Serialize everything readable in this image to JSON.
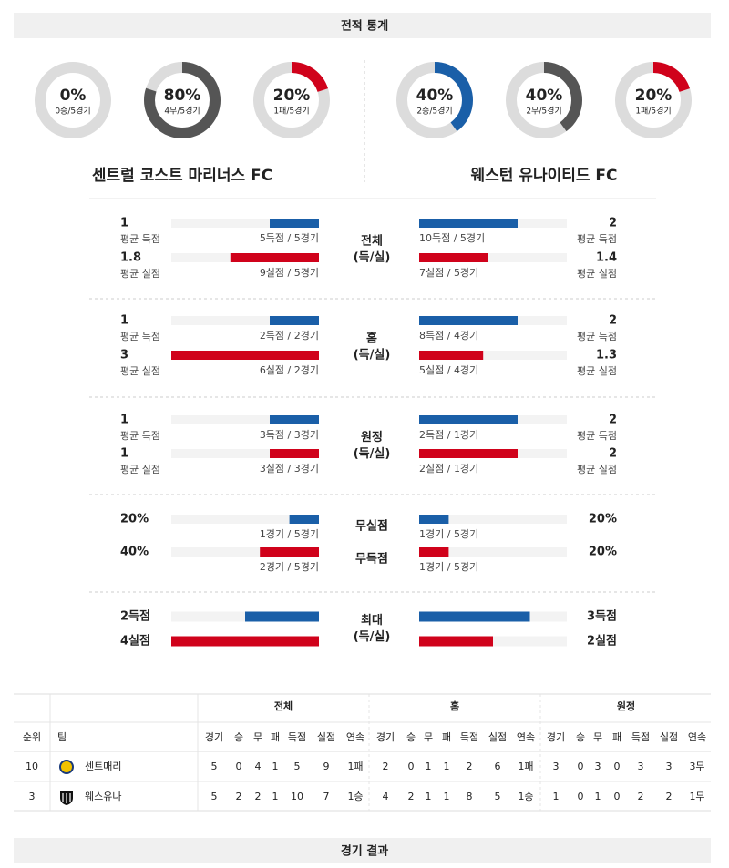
{
  "header": {
    "title": "전적 통계"
  },
  "teams": [
    {
      "name": "센트럴 코스트 마리너스 FC",
      "donuts": [
        {
          "value": 0,
          "label": "0%",
          "caption": "0승/5경기",
          "color": "#1a5fa8"
        },
        {
          "value": 80,
          "label": "80%",
          "caption": "4무/5경기",
          "color": "#555555"
        },
        {
          "value": 20,
          "label": "20%",
          "caption": "1패/5경기",
          "color": "#d0021b"
        }
      ]
    },
    {
      "name": "웨스턴 유나이티드 FC",
      "donuts": [
        {
          "value": 40,
          "label": "40%",
          "caption": "2승/5경기",
          "color": "#1a5fa8"
        },
        {
          "value": 40,
          "label": "40%",
          "caption": "2무/5경기",
          "color": "#555555"
        },
        {
          "value": 20,
          "label": "20%",
          "caption": "1패/5경기",
          "color": "#d0021b"
        }
      ]
    }
  ],
  "stats": {
    "sections": [
      {
        "label": [
          "전체",
          "(득/실)"
        ],
        "xlim": [
          0,
          3
        ],
        "rows": [
          {
            "color": "#1a5fa8",
            "left": {
              "value": 1,
              "caption": "평균 득점",
              "note": "5득점 / 5경기"
            },
            "right": {
              "value": 2,
              "caption": "평균 득점",
              "note": "10득점 / 5경기"
            }
          },
          {
            "color": "#d0021b",
            "left": {
              "value": 1.8,
              "caption": "평균 실점",
              "note": "9실점 / 5경기"
            },
            "right": {
              "value": 1.4,
              "caption": "평균 실점",
              "note": "7실점 / 5경기"
            }
          }
        ]
      },
      {
        "label": [
          "홈",
          "(득/실)"
        ],
        "xlim": [
          0,
          3
        ],
        "rows": [
          {
            "color": "#1a5fa8",
            "left": {
              "value": 1,
              "caption": "평균 득점",
              "note": "2득점 / 2경기"
            },
            "right": {
              "value": 2,
              "caption": "평균 득점",
              "note": "8득점 / 4경기"
            }
          },
          {
            "color": "#d0021b",
            "left": {
              "value": 3,
              "caption": "평균 실점",
              "note": "6실점 / 2경기"
            },
            "right": {
              "value": 1.3,
              "caption": "평균 실점",
              "note": "5실점 / 4경기"
            }
          }
        ]
      },
      {
        "label": [
          "원정",
          "(득/실)"
        ],
        "xlim": [
          0,
          3
        ],
        "rows": [
          {
            "color": "#1a5fa8",
            "left": {
              "value": 1,
              "caption": "평균 득점",
              "note": "3득점 / 3경기"
            },
            "right": {
              "value": 2,
              "caption": "평균 득점",
              "note": "2득점 / 1경기"
            }
          },
          {
            "color": "#d0021b",
            "left": {
              "value": 1,
              "caption": "평균 실점",
              "note": "3실점 / 3경기"
            },
            "right": {
              "value": 2,
              "caption": "평균 실점",
              "note": "2실점 / 1경기"
            }
          }
        ]
      },
      {
        "xlim": [
          0,
          100
        ],
        "rows": [
          {
            "label": "무실점",
            "color": "#1a5fa8",
            "left": {
              "value": 20,
              "value_label": "20%",
              "note": "1경기 / 5경기"
            },
            "right": {
              "value": 20,
              "value_label": "20%",
              "note": "1경기 / 5경기"
            }
          },
          {
            "label": "무득점",
            "color": "#d0021b",
            "left": {
              "value": 40,
              "value_label": "40%",
              "note": "2경기 / 5경기"
            },
            "right": {
              "value": 20,
              "value_label": "20%",
              "note": "1경기 / 5경기"
            }
          }
        ]
      },
      {
        "label": [
          "최대",
          "(득/실)"
        ],
        "xlim": [
          0,
          4
        ],
        "rows": [
          {
            "color": "#1a5fa8",
            "left": {
              "value": 2,
              "value_label": "2득점"
            },
            "right": {
              "value": 3,
              "value_label": "3득점"
            }
          },
          {
            "color": "#d0021b",
            "left": {
              "value": 4,
              "value_label": "4실점"
            },
            "right": {
              "value": 2,
              "value_label": "2실점"
            }
          }
        ]
      }
    ]
  },
  "standings": {
    "headers": [
      "순위",
      "팀"
    ],
    "groups": [
      "전체",
      "홈",
      "원정"
    ],
    "columns": [
      "경기",
      "승",
      "무",
      "패",
      "득점",
      "실점",
      "연속"
    ],
    "rows": [
      {
        "rank": 10,
        "team": "센트매리",
        "cells": [
          5,
          0,
          4,
          1,
          5,
          9,
          "1패",
          2,
          0,
          1,
          1,
          2,
          6,
          "1패",
          3,
          0,
          3,
          0,
          3,
          3,
          "3무"
        ]
      },
      {
        "rank": 3,
        "team": "웨스유나",
        "cells": [
          5,
          2,
          2,
          1,
          10,
          7,
          "1승",
          4,
          2,
          1,
          1,
          8,
          5,
          "1승",
          1,
          0,
          1,
          0,
          2,
          2,
          "1무"
        ]
      }
    ]
  },
  "footer": {
    "title": "경기 결과"
  }
}
